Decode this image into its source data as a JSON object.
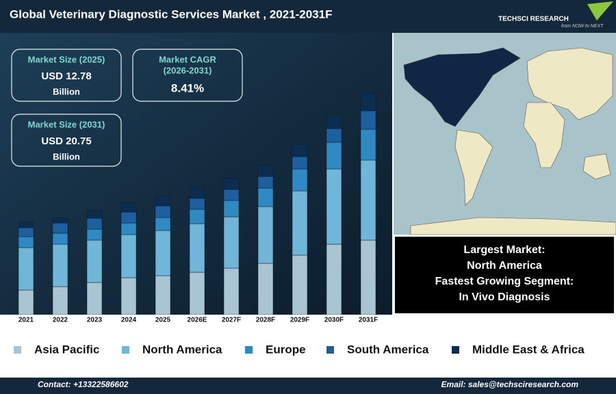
{
  "chart_data": {
    "type": "bar",
    "stacked": true,
    "title": "Global Veterinary Diagnostic Services Market , 2021-2031F",
    "categories": [
      "2021",
      "2022",
      "2023",
      "2024",
      "2025",
      "2026E",
      "2027F",
      "2028F",
      "2029F",
      "2030F",
      "2031F"
    ],
    "series": [
      {
        "name": "Asia Pacific",
        "color": "#a9c5d3",
        "values": [
          36,
          41,
          47,
          54,
          57,
          62,
          68,
          75,
          87,
          103,
          109
        ]
      },
      {
        "name": "North America",
        "color": "#6fb6d9",
        "values": [
          62,
          62,
          62,
          63,
          66,
          71,
          75,
          83,
          94,
          110,
          117
        ]
      },
      {
        "name": "Europe",
        "color": "#2f8ac4",
        "values": [
          16,
          16,
          16,
          17,
          19,
          21,
          24,
          27,
          32,
          39,
          45
        ]
      },
      {
        "name": "South America",
        "color": "#1e5fa0",
        "values": [
          13,
          15,
          16,
          16,
          17,
          16,
          16,
          17,
          18,
          20,
          27
        ]
      },
      {
        "name": "Middle East & Africa",
        "color": "#0d2d50",
        "values": [
          8,
          8,
          11,
          13,
          14,
          16,
          16,
          16,
          18,
          20,
          26
        ]
      }
    ],
    "ylim": [
      0,
      330
    ]
  },
  "kpis": [
    {
      "label": [
        "Market Size (2025)"
      ],
      "value": "USD 12.78",
      "unit": "Billion"
    },
    {
      "label": [
        "Market CAGR",
        "(2026-2031)"
      ],
      "value": "8.41%"
    },
    {
      "label": [
        "Market Size (2031)"
      ],
      "value": "USD 20.75",
      "unit": "Billion"
    }
  ],
  "highlights": [
    "Largest Market:",
    "North America",
    "Fastest Growing Segment:",
    "In Vivo Diagnosis"
  ],
  "logo": {
    "name": "TECHSCI RESEARCH",
    "tagline": "from NOW to NEXT"
  },
  "footer": {
    "contact": "Contact: +13322586602",
    "email": "Email: sales@techsciresearch.com"
  }
}
